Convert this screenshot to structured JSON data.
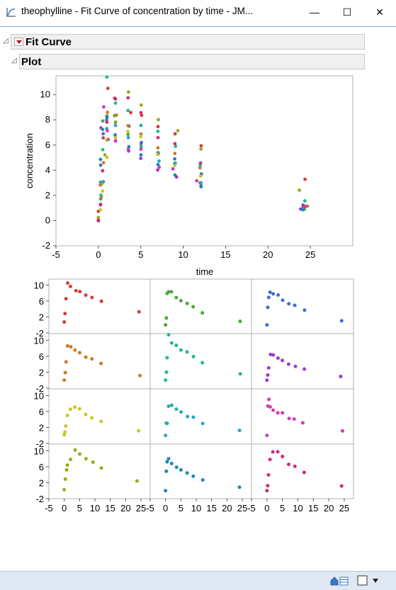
{
  "window": {
    "title": "theophylline - Fit Curve of concentration by time - JM...",
    "minimize": "—",
    "maximize": "☐",
    "close": "✕"
  },
  "outline": {
    "fit_curve_title": "Fit Curve",
    "plot_title": "Plot"
  },
  "colors": {
    "subjects": [
      "#d0403a",
      "#4aa83a",
      "#3a6fd0",
      "#cc7a2a",
      "#22b892",
      "#9a3ad6",
      "#c8c82a",
      "#2aa8b8",
      "#d03ab8",
      "#9aaa1a",
      "#1a8ab8",
      "#d02a7a"
    ]
  },
  "chart_data": [
    {
      "type": "scatter",
      "title": "",
      "xlabel": "time",
      "ylabel": "concentration",
      "xlim": [
        -5,
        30
      ],
      "ylim": [
        -2,
        11.5
      ],
      "x_ticks": [
        "-5",
        "0",
        "5",
        "10",
        "15",
        "20",
        "25"
      ],
      "y_ticks": [
        "-2",
        "0",
        "2",
        "4",
        "6",
        "8",
        "10"
      ],
      "grid": false,
      "series": [
        {
          "color": "#d0403a",
          "points": [
            [
              0,
              0.74
            ],
            [
              0.25,
              2.84
            ],
            [
              0.57,
              6.57
            ],
            [
              1.12,
              10.5
            ],
            [
              2.02,
              9.66
            ],
            [
              3.82,
              8.58
            ],
            [
              5.1,
              8.36
            ],
            [
              7.03,
              7.47
            ],
            [
              9.05,
              6.89
            ],
            [
              12.12,
              5.94
            ],
            [
              24.37,
              3.28
            ]
          ]
        },
        {
          "color": "#4aa83a",
          "points": [
            [
              0,
              0
            ],
            [
              0.27,
              1.72
            ],
            [
              0.52,
              7.91
            ],
            [
              1,
              8.31
            ],
            [
              1.92,
              8.33
            ],
            [
              3.5,
              6.85
            ],
            [
              5.02,
              6.08
            ],
            [
              7.03,
              5.4
            ],
            [
              9,
              4.55
            ],
            [
              12,
              3.01
            ],
            [
              24.3,
              0.9
            ]
          ]
        },
        {
          "color": "#3a6fd0",
          "points": [
            [
              0,
              0
            ],
            [
              0.27,
              4.4
            ],
            [
              0.58,
              6.9
            ],
            [
              1.02,
              8.2
            ],
            [
              2.02,
              7.8
            ],
            [
              3.62,
              7.5
            ],
            [
              5.08,
              6.2
            ],
            [
              7.07,
              5.3
            ],
            [
              9,
              4.9
            ],
            [
              12.15,
              3.7
            ],
            [
              24.17,
              1.05
            ]
          ]
        },
        {
          "color": "#cc7a2a",
          "points": [
            [
              0,
              0
            ],
            [
              0.35,
              1.89
            ],
            [
              0.6,
              4.6
            ],
            [
              1.07,
              8.6
            ],
            [
              2.13,
              8.38
            ],
            [
              3.5,
              7.54
            ],
            [
              5.02,
              6.88
            ],
            [
              7.02,
              5.78
            ],
            [
              9.02,
              5.33
            ],
            [
              11.98,
              4.19
            ],
            [
              24.65,
              1.15
            ]
          ]
        },
        {
          "color": "#22b892",
          "points": [
            [
              0,
              0
            ],
            [
              0.3,
              2.02
            ],
            [
              0.52,
              5.63
            ],
            [
              1,
              11.4
            ],
            [
              2.02,
              9.33
            ],
            [
              3.5,
              8.74
            ],
            [
              5.02,
              7.56
            ],
            [
              7.02,
              7.09
            ],
            [
              9.1,
              5.9
            ],
            [
              12,
              4.37
            ],
            [
              24.35,
              1.57
            ]
          ]
        },
        {
          "color": "#9a3ad6",
          "points": [
            [
              0,
              0
            ],
            [
              0.27,
              1.29
            ],
            [
              0.58,
              3.08
            ],
            [
              1.15,
              6.44
            ],
            [
              2.03,
              6.32
            ],
            [
              3.57,
              5.53
            ],
            [
              5,
              4.94
            ],
            [
              7,
              4.02
            ],
            [
              9.22,
              3.46
            ],
            [
              12.1,
              2.78
            ],
            [
              23.85,
              0.92
            ]
          ]
        },
        {
          "color": "#c8c82a",
          "points": [
            [
              0,
              0.15
            ],
            [
              0.25,
              0.85
            ],
            [
              0.5,
              2.35
            ],
            [
              1.02,
              5.02
            ],
            [
              2.02,
              6.58
            ],
            [
              3.48,
              7.09
            ],
            [
              5,
              6.66
            ],
            [
              6.98,
              5.25
            ],
            [
              9,
              4.39
            ],
            [
              12.05,
              3.53
            ],
            [
              24.22,
              1.15
            ]
          ]
        },
        {
          "color": "#2aa8b8",
          "points": [
            [
              0,
              0
            ],
            [
              0.25,
              3.05
            ],
            [
              0.52,
              3.05
            ],
            [
              0.98,
              7.31
            ],
            [
              2.02,
              7.56
            ],
            [
              3.53,
              6.59
            ],
            [
              5.05,
              5.88
            ],
            [
              7.15,
              4.73
            ],
            [
              9.07,
              4.57
            ],
            [
              12.1,
              3
            ],
            [
              24.12,
              1.25
            ]
          ]
        },
        {
          "color": "#d03ab8",
          "points": [
            [
              0,
              0
            ],
            [
              0.3,
              7.37
            ],
            [
              0.63,
              9.03
            ],
            [
              1.05,
              7.14
            ],
            [
              2.02,
              6.33
            ],
            [
              3.53,
              5.66
            ],
            [
              5.02,
              5.67
            ],
            [
              7.17,
              4.24
            ],
            [
              8.8,
              4.11
            ],
            [
              11.6,
              3.16
            ],
            [
              24.43,
              1.12
            ]
          ]
        },
        {
          "color": "#9aaa1a",
          "points": [
            [
              0,
              0.24
            ],
            [
              0.37,
              2.89
            ],
            [
              0.77,
              5.22
            ],
            [
              1.02,
              6.41
            ],
            [
              2.05,
              7.83
            ],
            [
              3.55,
              10.21
            ],
            [
              5.05,
              9.18
            ],
            [
              7.08,
              8.02
            ],
            [
              9.38,
              7.14
            ],
            [
              12.1,
              5.68
            ],
            [
              23.7,
              2.42
            ]
          ]
        },
        {
          "color": "#1a8ab8",
          "points": [
            [
              0,
              0
            ],
            [
              0.25,
              4.86
            ],
            [
              0.5,
              7.24
            ],
            [
              0.98,
              8
            ],
            [
              1.98,
              6.81
            ],
            [
              3.6,
              5.87
            ],
            [
              5.02,
              5.22
            ],
            [
              7.03,
              4.45
            ],
            [
              9.03,
              3.62
            ],
            [
              12.12,
              2.69
            ],
            [
              24.08,
              0.86
            ]
          ]
        },
        {
          "color": "#d02a7a",
          "points": [
            [
              0,
              0
            ],
            [
              0.25,
              1.25
            ],
            [
              0.5,
              3.96
            ],
            [
              1,
              7.82
            ],
            [
              1.92,
              9.72
            ],
            [
              3.5,
              9.75
            ],
            [
              5.02,
              8.57
            ],
            [
              7.03,
              6.59
            ],
            [
              9.03,
              6.11
            ],
            [
              12.05,
              4.57
            ],
            [
              24.15,
              1.17
            ]
          ]
        }
      ]
    },
    {
      "type": "scatter",
      "title": "",
      "layout": "4x3 small multiples",
      "xlim": [
        -5,
        28
      ],
      "ylim": [
        -2,
        11.5
      ],
      "x_ticks": [
        "-5",
        "0",
        "5",
        "10",
        "15",
        "20",
        "25"
      ],
      "y_ticks": [
        "-2",
        "2",
        "6",
        "10"
      ],
      "panel_series_order": [
        0,
        1,
        2,
        3,
        4,
        5,
        6,
        7,
        8,
        9,
        10,
        11
      ]
    }
  ],
  "statusbar": {
    "home_icon": "home-icon",
    "table_icon": "table-icon",
    "checkbox_icon": "checkbox-icon",
    "dropdown_icon": "dropdown-arrow-icon"
  }
}
